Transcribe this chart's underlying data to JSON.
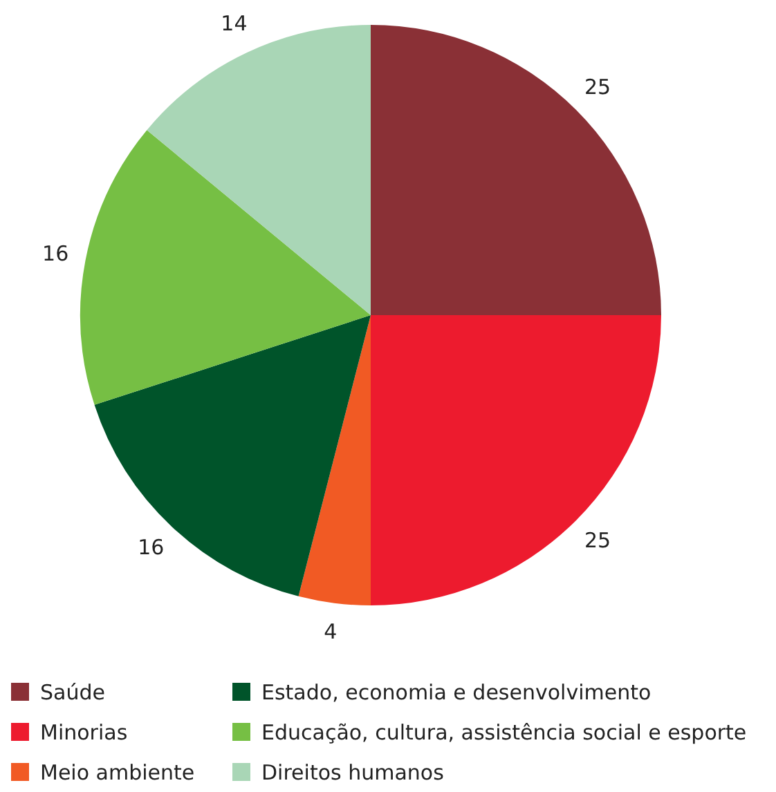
{
  "chart_data": {
    "type": "pie",
    "categories": [
      "Saúde",
      "Minorias",
      "Meio ambiente",
      "Estado, economia e desenvolvimento",
      "Educação, cultura, assistência social e esporte",
      "Direitos humanos"
    ],
    "values": [
      25,
      25,
      4,
      16,
      16,
      14
    ],
    "colors": [
      "#8a3036",
      "#ed1b2e",
      "#f15a24",
      "#00542a",
      "#76bf44",
      "#a9d6b6"
    ],
    "data_labels": true,
    "legend": "bottom"
  }
}
